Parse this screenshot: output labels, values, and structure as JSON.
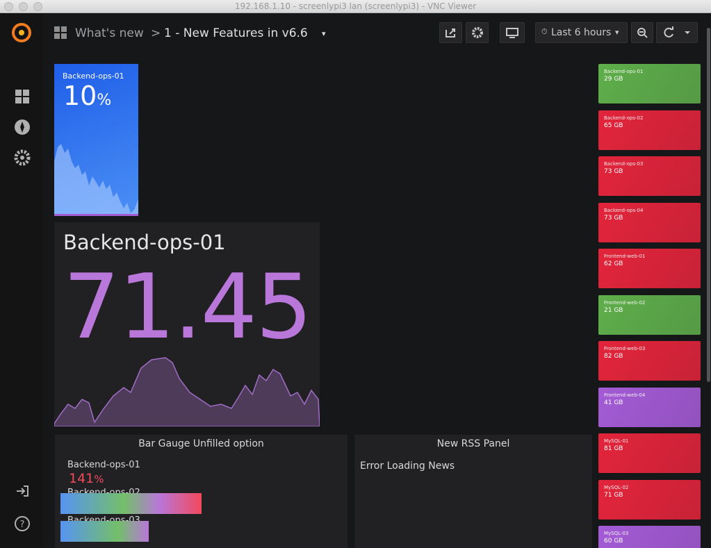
{
  "window": {
    "title": "192.168.1.10 - screenlypi3 lan (screenlypi3) - VNC Viewer"
  },
  "navbar": {
    "folder": "What's new",
    "dashboard": "1 - New Features in v6.6",
    "time_range": "Last 6 hours"
  },
  "panels": {
    "gradient_stat": {
      "title": "Backend-ops-01",
      "value": "10",
      "unit": "%"
    },
    "big_stat": {
      "title": "Backend-ops-01",
      "value": "71.45"
    },
    "bar_gauge": {
      "title": "Bar Gauge Unfilled option",
      "rows": [
        {
          "name": "Backend-ops-01",
          "value": "141",
          "unit": "%"
        },
        {
          "name": "Backend-ops-02"
        },
        {
          "name": "Backend-ops-03"
        }
      ]
    },
    "rss": {
      "title": "New RSS Panel",
      "message": "Error Loading News"
    }
  },
  "tiles": [
    {
      "name": "Backend-ops-01",
      "value": "29 GB",
      "color": "#5fae4b"
    },
    {
      "name": "Backend-ops-02",
      "value": "65 GB",
      "color": "#e3243b"
    },
    {
      "name": "Backend-ops-03",
      "value": "73 GB",
      "color": "#e3243b"
    },
    {
      "name": "Backend-ops-04",
      "value": "73 GB",
      "color": "#e3243b"
    },
    {
      "name": "Frontend-web-01",
      "value": "62 GB",
      "color": "#e3243b"
    },
    {
      "name": "Frontend-web-02",
      "value": "21 GB",
      "color": "#5fae4b"
    },
    {
      "name": "Frontend-web-03",
      "value": "82 GB",
      "color": "#e3243b"
    },
    {
      "name": "Frontend-web-04",
      "value": "41 GB",
      "color": "#a45bd6"
    },
    {
      "name": "MySQL-01",
      "value": "81 GB",
      "color": "#e3243b"
    },
    {
      "name": "MySQL-02",
      "value": "71 GB",
      "color": "#e3243b"
    },
    {
      "name": "MySQL-03",
      "value": "60 GB",
      "color": "#a45bd6"
    }
  ]
}
